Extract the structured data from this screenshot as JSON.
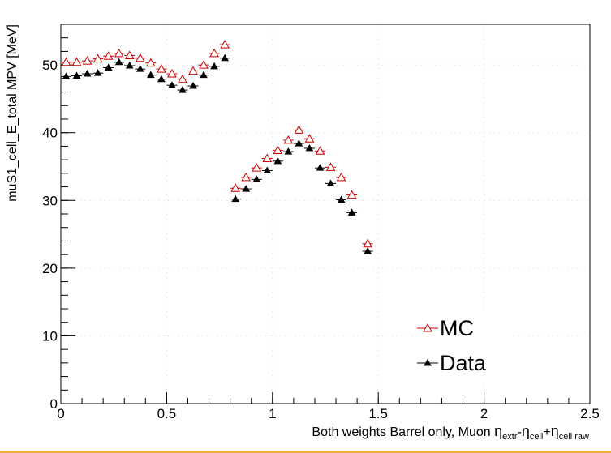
{
  "chart_data": {
    "type": "scatter",
    "title": "",
    "xlabel_parts": {
      "prefix": "Both weights Barrel only, Muon ",
      "eta1": "η",
      "sub1": "extr",
      "minus": "-",
      "eta2": "η",
      "sub2": "cell",
      "plus": "+",
      "eta3": "η",
      "sub3": "cell raw"
    },
    "ylabel": "muS1_cell_E_total MPV [MeV]",
    "xlim": [
      0,
      2.5
    ],
    "ylim": [
      0,
      56
    ],
    "xticks": [
      0,
      0.5,
      1,
      1.5,
      2,
      2.5
    ],
    "xtick_labels": [
      "0",
      "0.5",
      "1",
      "1.5",
      "2",
      "2.5"
    ],
    "yticks": [
      0,
      10,
      20,
      30,
      40,
      50
    ],
    "ytick_labels": [
      "0",
      "10",
      "20",
      "30",
      "40",
      "50"
    ],
    "x_halfwidth": 0.025,
    "legend": [
      "MC",
      "Data"
    ],
    "series": [
      {
        "name": "MC",
        "marker": "open-triangle",
        "color": "#cc0000",
        "x": [
          0.025,
          0.075,
          0.125,
          0.175,
          0.225,
          0.275,
          0.325,
          0.375,
          0.425,
          0.475,
          0.525,
          0.575,
          0.625,
          0.675,
          0.725,
          0.775,
          0.825,
          0.875,
          0.925,
          0.975,
          1.025,
          1.075,
          1.125,
          1.175,
          1.225,
          1.275,
          1.325,
          1.375,
          1.45
        ],
        "y": [
          50.4,
          50.4,
          50.6,
          50.9,
          51.3,
          51.7,
          51.4,
          51.0,
          50.3,
          49.4,
          48.7,
          47.9,
          49.1,
          50.0,
          51.7,
          53.0,
          31.8,
          33.4,
          34.8,
          36.2,
          37.4,
          38.9,
          40.4,
          39.1,
          37.3,
          34.9,
          33.4,
          30.8,
          23.6
        ]
      },
      {
        "name": "Data",
        "marker": "filled-triangle",
        "color": "#000000",
        "x": [
          0.025,
          0.075,
          0.125,
          0.175,
          0.225,
          0.275,
          0.325,
          0.375,
          0.425,
          0.475,
          0.525,
          0.575,
          0.625,
          0.675,
          0.725,
          0.775,
          0.825,
          0.875,
          0.925,
          0.975,
          1.025,
          1.075,
          1.125,
          1.175,
          1.225,
          1.275,
          1.325,
          1.375,
          1.45
        ],
        "y": [
          48.3,
          48.4,
          48.7,
          48.8,
          49.6,
          50.4,
          49.9,
          49.4,
          48.5,
          47.9,
          47.0,
          46.3,
          46.9,
          48.5,
          49.8,
          51.0,
          30.2,
          31.7,
          33.1,
          34.4,
          35.8,
          37.2,
          38.4,
          37.7,
          34.8,
          32.5,
          30.1,
          28.2,
          22.5
        ]
      }
    ]
  }
}
